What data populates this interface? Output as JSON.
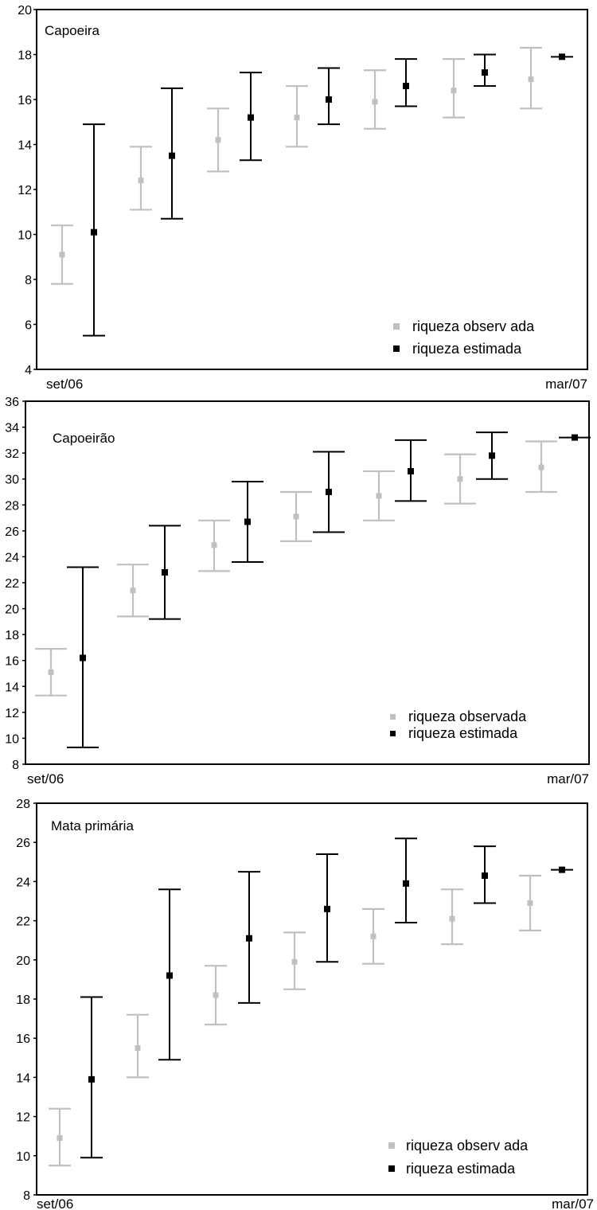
{
  "chart_data": [
    {
      "type": "errorbar",
      "title": "Capoeira",
      "ylim": [
        4,
        20
      ],
      "yticks": [
        4,
        6,
        8,
        10,
        12,
        14,
        16,
        18,
        20
      ],
      "x_labels": {
        "start": "set/06",
        "end": "mar/07"
      },
      "grid": false,
      "legend_position": "bottom-right",
      "series": [
        {
          "name": "riqueza observ ada",
          "color": "#c0c0c0",
          "points": [
            {
              "y": 9.1,
              "low": 7.8,
              "high": 10.4
            },
            {
              "y": 12.4,
              "low": 11.1,
              "high": 13.9
            },
            {
              "y": 14.2,
              "low": 12.8,
              "high": 15.6
            },
            {
              "y": 15.2,
              "low": 13.9,
              "high": 16.6
            },
            {
              "y": 15.9,
              "low": 14.7,
              "high": 17.3
            },
            {
              "y": 16.4,
              "low": 15.2,
              "high": 17.8
            },
            {
              "y": 16.9,
              "low": 15.6,
              "high": 18.3
            }
          ]
        },
        {
          "name": "riqueza estimada",
          "color": "#000000",
          "points": [
            {
              "y": 10.1,
              "low": 5.5,
              "high": 14.9
            },
            {
              "y": 13.5,
              "low": 10.7,
              "high": 16.5
            },
            {
              "y": 15.2,
              "low": 13.3,
              "high": 17.2
            },
            {
              "y": 16.0,
              "low": 14.9,
              "high": 17.4
            },
            {
              "y": 16.6,
              "low": 15.7,
              "high": 17.8
            },
            {
              "y": 17.2,
              "low": 16.6,
              "high": 18.0
            },
            {
              "y": 17.9,
              "low": 17.9,
              "high": 17.9
            }
          ]
        }
      ]
    },
    {
      "type": "errorbar",
      "title": "Capoeirão",
      "ylim": [
        8,
        36
      ],
      "yticks": [
        8,
        10,
        12,
        14,
        16,
        18,
        20,
        22,
        24,
        26,
        28,
        30,
        32,
        34,
        36
      ],
      "x_labels": {
        "start": "set/06",
        "end": "mar/07"
      },
      "grid": false,
      "legend_position": "bottom-right",
      "series": [
        {
          "name": "riqueza observada",
          "color": "#c0c0c0",
          "points": [
            {
              "y": 15.1,
              "low": 13.3,
              "high": 16.9
            },
            {
              "y": 21.4,
              "low": 19.4,
              "high": 23.4
            },
            {
              "y": 24.9,
              "low": 22.9,
              "high": 26.8
            },
            {
              "y": 27.1,
              "low": 25.2,
              "high": 29.0
            },
            {
              "y": 28.7,
              "low": 26.8,
              "high": 30.6
            },
            {
              "y": 30.0,
              "low": 28.1,
              "high": 31.9
            },
            {
              "y": 30.9,
              "low": 29.0,
              "high": 32.9
            }
          ]
        },
        {
          "name": "riqueza estimada",
          "color": "#000000",
          "points": [
            {
              "y": 16.2,
              "low": 9.3,
              "high": 23.2
            },
            {
              "y": 22.8,
              "low": 19.2,
              "high": 26.4
            },
            {
              "y": 26.7,
              "low": 23.6,
              "high": 29.8
            },
            {
              "y": 29.0,
              "low": 25.9,
              "high": 32.1
            },
            {
              "y": 30.6,
              "low": 28.3,
              "high": 33.0
            },
            {
              "y": 31.8,
              "low": 30.0,
              "high": 33.6
            },
            {
              "y": 33.2,
              "low": 33.2,
              "high": 33.2
            }
          ]
        }
      ]
    },
    {
      "type": "errorbar",
      "title": "Mata primária",
      "ylim": [
        8,
        28
      ],
      "yticks": [
        8,
        10,
        12,
        14,
        16,
        18,
        20,
        22,
        24,
        26,
        28
      ],
      "x_labels": {
        "start": "set/06",
        "end": "mar/07"
      },
      "grid": false,
      "legend_position": "bottom-right",
      "series": [
        {
          "name": "riqueza observ ada",
          "color": "#c0c0c0",
          "points": [
            {
              "y": 10.9,
              "low": 9.5,
              "high": 12.4
            },
            {
              "y": 15.5,
              "low": 14.0,
              "high": 17.2
            },
            {
              "y": 18.2,
              "low": 16.7,
              "high": 19.7
            },
            {
              "y": 19.9,
              "low": 18.5,
              "high": 21.4
            },
            {
              "y": 21.2,
              "low": 19.8,
              "high": 22.6
            },
            {
              "y": 22.1,
              "low": 20.8,
              "high": 23.6
            },
            {
              "y": 22.9,
              "low": 21.5,
              "high": 24.3
            }
          ]
        },
        {
          "name": "riqueza estimada",
          "color": "#000000",
          "points": [
            {
              "y": 13.9,
              "low": 9.9,
              "high": 18.1
            },
            {
              "y": 19.2,
              "low": 14.9,
              "high": 23.6
            },
            {
              "y": 21.1,
              "low": 17.8,
              "high": 24.5
            },
            {
              "y": 22.6,
              "low": 19.9,
              "high": 25.4
            },
            {
              "y": 23.9,
              "low": 21.9,
              "high": 26.2
            },
            {
              "y": 24.3,
              "low": 22.9,
              "high": 25.8
            },
            {
              "y": 24.6,
              "low": 24.6,
              "high": 24.6
            }
          ]
        }
      ]
    }
  ]
}
